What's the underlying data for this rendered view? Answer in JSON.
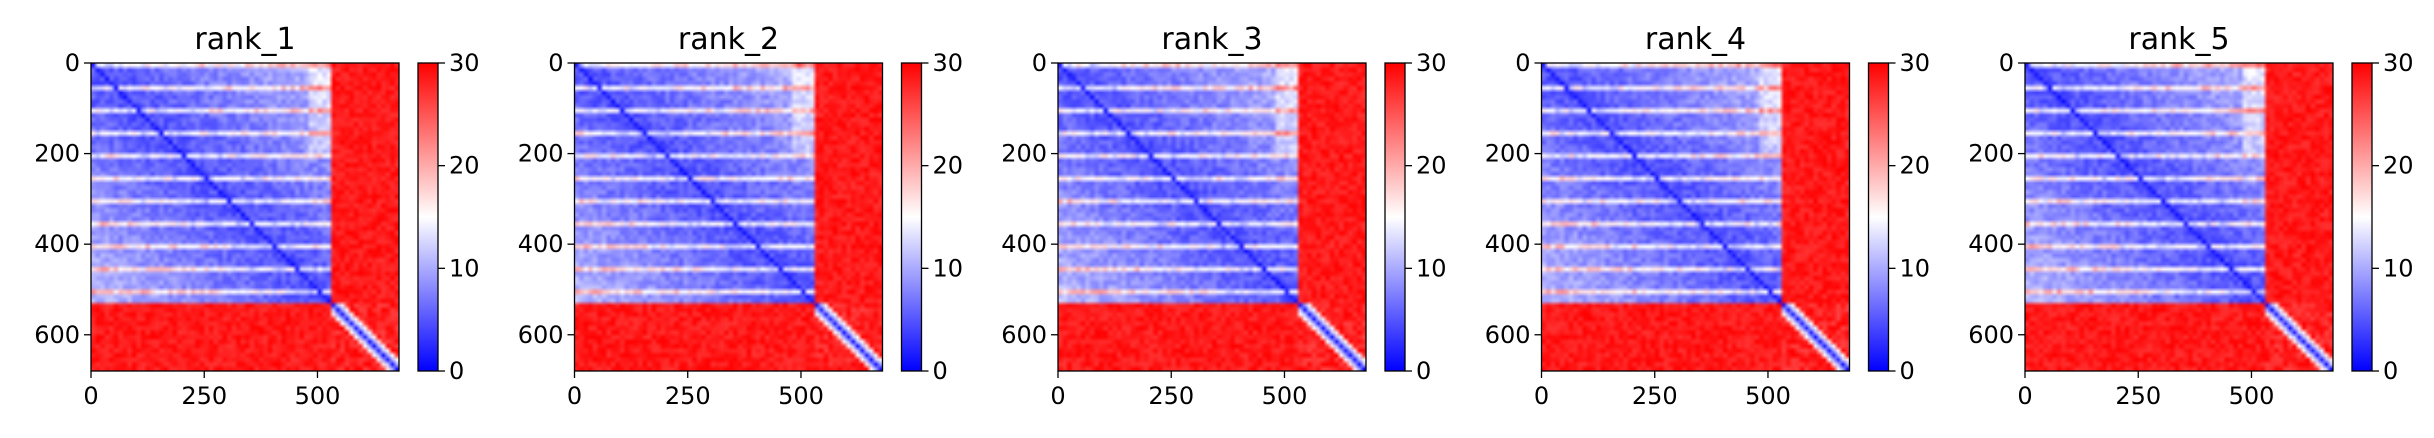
{
  "chart_data": [
    {
      "type": "heatmap",
      "title": "rank_1",
      "xlim": [
        0,
        680
      ],
      "ylim": [
        680,
        0
      ],
      "xticks": [
        0,
        250,
        500
      ],
      "yticks": [
        0,
        200,
        400,
        600
      ],
      "x_tick_labels": [
        "0",
        "250",
        "500"
      ],
      "y_tick_labels": [
        "0",
        "200",
        "400",
        "600"
      ],
      "colorbar": {
        "range": [
          0,
          30
        ],
        "ticks": [
          0,
          10,
          20,
          30
        ],
        "labels": [
          "0",
          "10",
          "20",
          "30"
        ],
        "colormap": "bwr"
      },
      "domain_boundary": 530,
      "pattern": "block-structured matrix: low values (blue) within residues 0–530 and along the diagonal; high values (red) between the two blocks and in the lower-right block"
    },
    {
      "type": "heatmap",
      "title": "rank_2",
      "xlim": [
        0,
        680
      ],
      "ylim": [
        680,
        0
      ],
      "xticks": [
        0,
        250,
        500
      ],
      "yticks": [
        0,
        200,
        400,
        600
      ],
      "x_tick_labels": [
        "0",
        "250",
        "500"
      ],
      "y_tick_labels": [
        "0",
        "200",
        "400",
        "600"
      ],
      "colorbar": {
        "range": [
          0,
          30
        ],
        "ticks": [
          0,
          10,
          20,
          30
        ],
        "labels": [
          "0",
          "10",
          "20",
          "30"
        ],
        "colormap": "bwr"
      },
      "domain_boundary": 530,
      "pattern": "block-structured matrix: low values (blue) within residues 0–530 and along the diagonal; high values (red) between the two blocks and in the lower-right block"
    },
    {
      "type": "heatmap",
      "title": "rank_3",
      "xlim": [
        0,
        680
      ],
      "ylim": [
        680,
        0
      ],
      "xticks": [
        0,
        250,
        500
      ],
      "yticks": [
        0,
        200,
        400,
        600
      ],
      "x_tick_labels": [
        "0",
        "250",
        "500"
      ],
      "y_tick_labels": [
        "0",
        "200",
        "400",
        "600"
      ],
      "colorbar": {
        "range": [
          0,
          30
        ],
        "ticks": [
          0,
          10,
          20,
          30
        ],
        "labels": [
          "0",
          "10",
          "20",
          "30"
        ],
        "colormap": "bwr"
      },
      "domain_boundary": 530,
      "pattern": "block-structured matrix: low values (blue) within residues 0–530 and along the diagonal; high values (red) between the two blocks and in the lower-right block"
    },
    {
      "type": "heatmap",
      "title": "rank_4",
      "xlim": [
        0,
        680
      ],
      "ylim": [
        680,
        0
      ],
      "xticks": [
        0,
        250,
        500
      ],
      "yticks": [
        0,
        200,
        400,
        600
      ],
      "x_tick_labels": [
        "0",
        "250",
        "500"
      ],
      "y_tick_labels": [
        "0",
        "200",
        "400",
        "600"
      ],
      "colorbar": {
        "range": [
          0,
          30
        ],
        "ticks": [
          0,
          10,
          20,
          30
        ],
        "labels": [
          "0",
          "10",
          "20",
          "30"
        ],
        "colormap": "bwr"
      },
      "domain_boundary": 530,
      "pattern": "block-structured matrix: low values (blue) within residues 0–530 and along the diagonal; high values (red) between the two blocks and in the lower-right block"
    },
    {
      "type": "heatmap",
      "title": "rank_5",
      "xlim": [
        0,
        680
      ],
      "ylim": [
        680,
        0
      ],
      "xticks": [
        0,
        250,
        500
      ],
      "yticks": [
        0,
        200,
        400,
        600
      ],
      "x_tick_labels": [
        "0",
        "250",
        "500"
      ],
      "y_tick_labels": [
        "0",
        "200",
        "400",
        "600"
      ],
      "colorbar": {
        "range": [
          0,
          30
        ],
        "ticks": [
          0,
          10,
          20,
          30
        ],
        "labels": [
          "0",
          "10",
          "20",
          "30"
        ],
        "colormap": "bwr"
      },
      "domain_boundary": 530,
      "pattern": "block-structured matrix: low values (blue) within residues 0–530 and along the diagonal; high values (red) between the two blocks and in the lower-right block"
    }
  ],
  "colors": {
    "low": "#0000ff",
    "mid": "#ffffff",
    "high": "#ff0000"
  }
}
